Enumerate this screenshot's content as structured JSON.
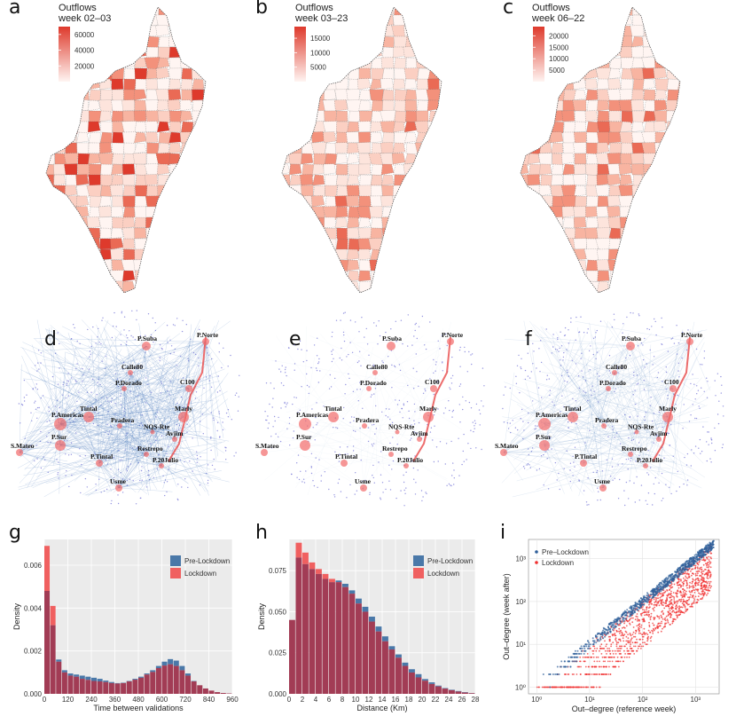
{
  "panels": {
    "a": {
      "letter": "a",
      "legend_title_1": "Outflows",
      "legend_title_2": "week 02–03",
      "legend_ticks": [
        "60000",
        "40000",
        "20000"
      ],
      "legend_values": [
        60000,
        40000,
        20000
      ],
      "legend_max": 70000
    },
    "b": {
      "letter": "b",
      "legend_title_1": "Outflows",
      "legend_title_2": "week 03–23",
      "legend_ticks": [
        "15000",
        "10000",
        "5000"
      ],
      "legend_values": [
        15000,
        10000,
        5000
      ],
      "legend_max": 19000
    },
    "c": {
      "letter": "c",
      "legend_title_1": "Outflows",
      "legend_title_2": "week 06–22",
      "legend_ticks": [
        "20000",
        "15000",
        "10000",
        "5000"
      ],
      "legend_values": [
        20000,
        15000,
        10000,
        5000
      ],
      "legend_max": 24000
    },
    "d": {
      "letter": "d"
    },
    "e": {
      "letter": "e"
    },
    "f": {
      "letter": "f"
    },
    "g": {
      "letter": "g"
    },
    "h": {
      "letter": "h"
    },
    "i": {
      "letter": "i"
    }
  },
  "network_nodes": [
    "P.Suba",
    "P.Norte",
    "Calle80",
    "C100",
    "P.Dorado",
    "Marly",
    "Tintal",
    "P.Americas",
    "Pradera",
    "NQS-Rte",
    "Avjim",
    "P.Sur",
    "S.Mateo",
    "Restrepo",
    "P.Tintal",
    "P.20Julio",
    "Usme"
  ],
  "colors": {
    "pre": "#4a78a8",
    "lock": "#f06060",
    "overlap": "#a23c55",
    "scatter_pre": "#2f5f9a",
    "scatter_lock": "#f03030",
    "edge": "#3b6fb6"
  },
  "chart_data": [
    {
      "type": "bar",
      "panel": "g",
      "xlabel": "Time between validations",
      "ylabel": "Density",
      "x_ticks": [
        "0",
        "120",
        "240",
        "360",
        "480",
        "600",
        "720",
        "840",
        "960"
      ],
      "y_ticks": [
        "0.000",
        "0.002",
        "0.004",
        "0.006"
      ],
      "xlim": [
        0,
        960
      ],
      "ylim": [
        0,
        0.0072
      ],
      "bin_width": 30,
      "legend": [
        "Pre-Lockdown",
        "Lockdown"
      ],
      "series": [
        {
          "name": "Pre-Lockdown",
          "values": [
            0.0048,
            0.0032,
            0.0016,
            0.0011,
            0.00095,
            0.0009,
            0.00085,
            0.0008,
            0.00075,
            0.0007,
            0.00062,
            0.00055,
            0.0005,
            0.00052,
            0.0006,
            0.0007,
            0.0008,
            0.00095,
            0.0011,
            0.0013,
            0.0015,
            0.00162,
            0.00155,
            0.0013,
            0.00095,
            0.0006,
            0.0004,
            0.00025,
            0.00015,
            8e-05,
            4e-05,
            2e-05
          ]
        },
        {
          "name": "Lockdown",
          "values": [
            0.0069,
            0.0041,
            0.0015,
            0.001,
            0.00085,
            0.0008,
            0.0007,
            0.00065,
            0.0006,
            0.00058,
            0.00055,
            0.0005,
            0.00048,
            0.0005,
            0.00058,
            0.00066,
            0.00075,
            0.0009,
            0.00102,
            0.0012,
            0.00132,
            0.00138,
            0.0013,
            0.0011,
            0.00085,
            0.00058,
            0.0004,
            0.00025,
            0.00015,
            8e-05,
            4e-05,
            2e-05
          ]
        }
      ]
    },
    {
      "type": "bar",
      "panel": "h",
      "xlabel": "Distance (Km)",
      "ylabel": "Density",
      "x_ticks": [
        "0",
        "2",
        "4",
        "6",
        "8",
        "10",
        "12",
        "14",
        "16",
        "18",
        "20",
        "22",
        "24",
        "26",
        "28"
      ],
      "y_ticks": [
        "0.000",
        "0.025",
        "0.050",
        "0.075"
      ],
      "xlim": [
        0,
        28
      ],
      "ylim": [
        0,
        0.094
      ],
      "bin_width": 1,
      "legend": [
        "Pre-Lockdown",
        "Lockdown"
      ],
      "series": [
        {
          "name": "Pre-Lockdown",
          "values": [
            0.045,
            0.083,
            0.079,
            0.076,
            0.073,
            0.07,
            0.068,
            0.069,
            0.067,
            0.063,
            0.058,
            0.053,
            0.047,
            0.041,
            0.035,
            0.029,
            0.024,
            0.019,
            0.015,
            0.012,
            0.009,
            0.007,
            0.005,
            0.0035,
            0.0025,
            0.0017,
            0.001,
            0.0005
          ]
        },
        {
          "name": "Lockdown",
          "values": [
            0.045,
            0.092,
            0.086,
            0.08,
            0.076,
            0.073,
            0.07,
            0.068,
            0.065,
            0.061,
            0.055,
            0.05,
            0.044,
            0.038,
            0.032,
            0.027,
            0.022,
            0.017,
            0.013,
            0.01,
            0.008,
            0.006,
            0.0045,
            0.0032,
            0.0022,
            0.0014,
            0.0008,
            0.0004
          ]
        }
      ]
    },
    {
      "type": "scatter",
      "panel": "i",
      "xlabel": "Out–degree (reference week)",
      "ylabel": "Out–degree (week after)",
      "x_ticks": [
        "10⁰",
        "10¹",
        "10²",
        "10³"
      ],
      "y_ticks": [
        "10⁰",
        "10¹",
        "10²",
        "10³"
      ],
      "x_scale": "log10",
      "y_scale": "log10",
      "xlim": [
        0.7,
        2800
      ],
      "ylim": [
        0.7,
        2800
      ],
      "legend": [
        "Pre–Lockdown",
        "Lockdown"
      ],
      "series": [
        {
          "name": "Pre–Lockdown",
          "relation": "y ≈ x",
          "points": [
            [
              1,
              1
            ],
            [
              2,
              2
            ],
            [
              5,
              5
            ],
            [
              10,
              9
            ],
            [
              30,
              28
            ],
            [
              100,
              95
            ],
            [
              300,
              290
            ],
            [
              1000,
              980
            ],
            [
              2000,
              1900
            ]
          ]
        },
        {
          "name": "Lockdown",
          "relation": "y ≈ 0.3 x",
          "points": [
            [
              1,
              1
            ],
            [
              5,
              2
            ],
            [
              10,
              3
            ],
            [
              30,
              9
            ],
            [
              100,
              30
            ],
            [
              300,
              90
            ],
            [
              1000,
              300
            ],
            [
              2000,
              600
            ]
          ]
        }
      ]
    }
  ]
}
